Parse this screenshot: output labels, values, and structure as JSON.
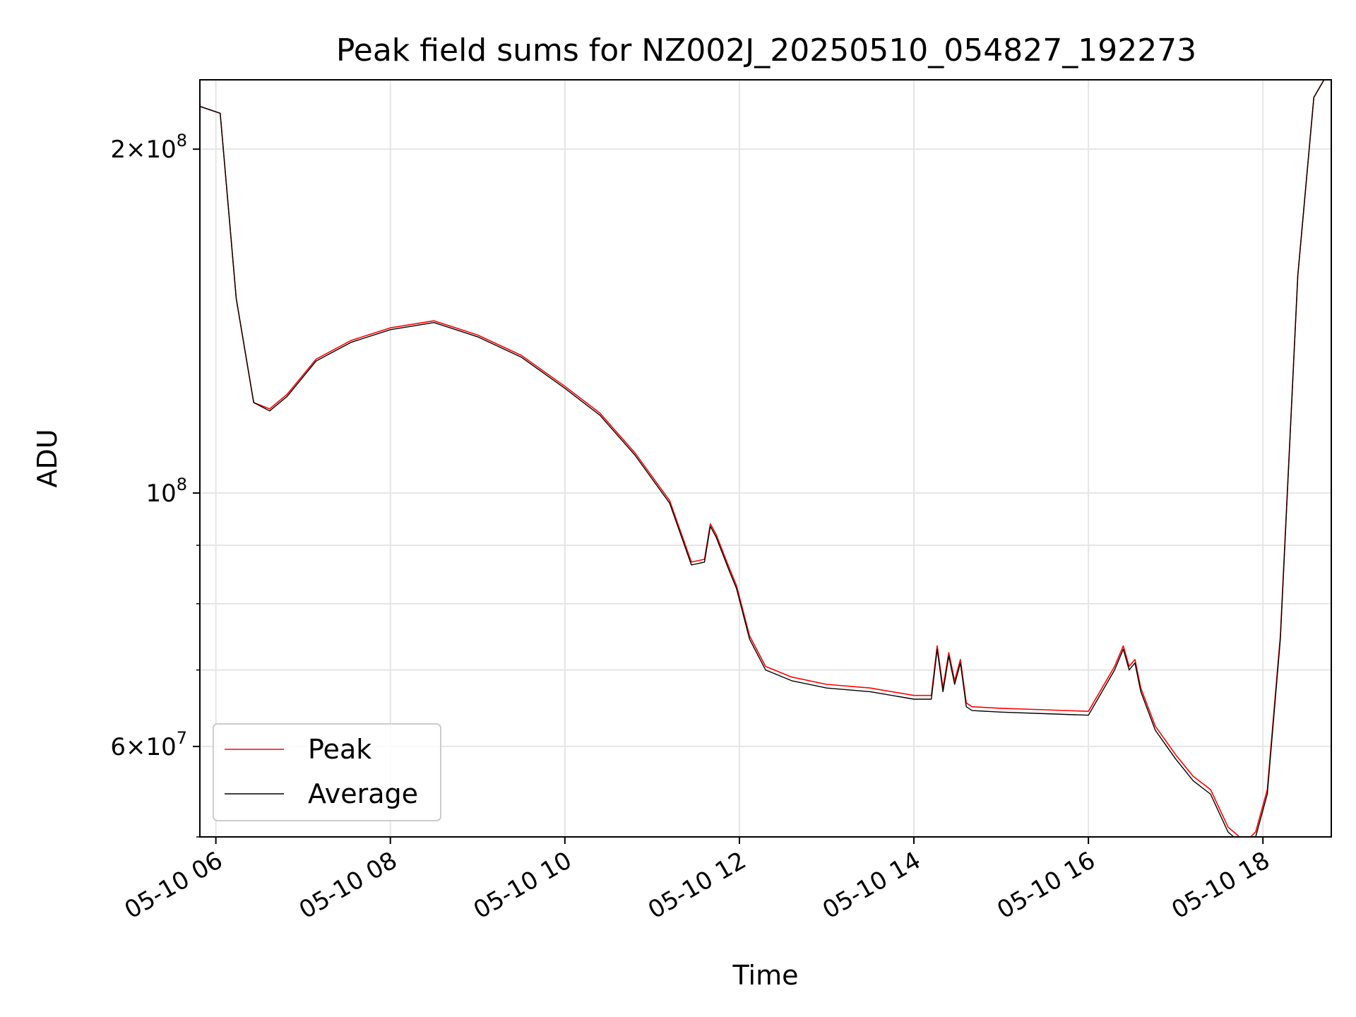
{
  "chart_data": {
    "type": "line",
    "title": "Peak field sums for NZ002J_20250510_054827_192273",
    "xlabel": "Time",
    "ylabel": "ADU",
    "yscale": "log",
    "xlim": [
      "2025-05-10T05:49",
      "2025-05-10T18:47"
    ],
    "ylim": [
      50000000,
      230000000
    ],
    "x_ticks": [
      {
        "value": "2025-05-10T06:00",
        "label": "05-10 06"
      },
      {
        "value": "2025-05-10T08:00",
        "label": "05-10 08"
      },
      {
        "value": "2025-05-10T10:00",
        "label": "05-10 10"
      },
      {
        "value": "2025-05-10T12:00",
        "label": "05-10 12"
      },
      {
        "value": "2025-05-10T14:00",
        "label": "05-10 14"
      },
      {
        "value": "2025-05-10T16:00",
        "label": "05-10 16"
      },
      {
        "value": "2025-05-10T18:00",
        "label": "05-10 18"
      }
    ],
    "y_major_ticks": [
      {
        "value": 60000000,
        "mantissa": "6",
        "exponent": "7",
        "has_mantissa": true
      },
      {
        "value": 100000000,
        "mantissa": "",
        "exponent": "8",
        "has_mantissa": false
      },
      {
        "value": 200000000,
        "mantissa": "2",
        "exponent": "8",
        "has_mantissa": true
      }
    ],
    "y_minor_ticks": [
      50000000,
      70000000,
      80000000,
      90000000
    ],
    "grid": true,
    "legend_position": "lower-left",
    "series": [
      {
        "name": "Peak",
        "color": "#ff0000",
        "x": [
          "2025-05-10T05:49",
          "2025-05-10T06:03",
          "2025-05-10T06:14",
          "2025-05-10T06:26",
          "2025-05-10T06:37",
          "2025-05-10T06:49",
          "2025-05-10T07:09",
          "2025-05-10T07:33",
          "2025-05-10T08:00",
          "2025-05-10T08:30",
          "2025-05-10T09:00",
          "2025-05-10T09:30",
          "2025-05-10T10:00",
          "2025-05-10T10:24",
          "2025-05-10T10:48",
          "2025-05-10T11:12",
          "2025-05-10T11:27",
          "2025-05-10T11:36",
          "2025-05-10T11:40",
          "2025-05-10T11:44",
          "2025-05-10T11:53",
          "2025-05-10T11:58",
          "2025-05-10T12:07",
          "2025-05-10T12:18",
          "2025-05-10T12:36",
          "2025-05-10T13:00",
          "2025-05-10T13:30",
          "2025-05-10T14:00",
          "2025-05-10T14:12",
          "2025-05-10T14:16",
          "2025-05-10T14:20",
          "2025-05-10T14:24",
          "2025-05-10T14:28",
          "2025-05-10T14:32",
          "2025-05-10T14:36",
          "2025-05-10T14:40",
          "2025-05-10T15:00",
          "2025-05-10T15:30",
          "2025-05-10T16:00",
          "2025-05-10T16:18",
          "2025-05-10T16:24",
          "2025-05-10T16:28",
          "2025-05-10T16:32",
          "2025-05-10T16:36",
          "2025-05-10T16:46",
          "2025-05-10T17:00",
          "2025-05-10T17:12",
          "2025-05-10T17:24",
          "2025-05-10T17:36",
          "2025-05-10T17:48",
          "2025-05-10T17:55",
          "2025-05-10T18:03",
          "2025-05-10T18:12",
          "2025-05-10T18:24",
          "2025-05-10T18:35",
          "2025-05-10T18:42",
          "2025-05-10T18:47"
        ],
        "y": [
          218000000,
          215000000,
          148000000,
          120000000,
          118500000,
          122000000,
          131000000,
          136000000,
          139500000,
          141500000,
          137500000,
          132000000,
          124000000,
          117500000,
          108500000,
          98500000,
          87000000,
          87500000,
          94000000,
          92000000,
          86000000,
          83000000,
          75000000,
          70500000,
          69000000,
          68000000,
          67500000,
          66500000,
          66500000,
          73500000,
          67500000,
          72500000,
          68500000,
          71500000,
          65500000,
          65000000,
          64800000,
          64600000,
          64400000,
          70500000,
          73500000,
          70500000,
          71500000,
          67500000,
          62500000,
          59000000,
          56500000,
          55000000,
          51000000,
          49500000,
          50500000,
          55000000,
          75000000,
          155000000,
          222000000,
          230000000,
          230000000
        ]
      },
      {
        "name": "Average",
        "color": "#000000",
        "x": [
          "2025-05-10T05:49",
          "2025-05-10T06:03",
          "2025-05-10T06:14",
          "2025-05-10T06:26",
          "2025-05-10T06:37",
          "2025-05-10T06:49",
          "2025-05-10T07:09",
          "2025-05-10T07:33",
          "2025-05-10T08:00",
          "2025-05-10T08:30",
          "2025-05-10T09:00",
          "2025-05-10T09:30",
          "2025-05-10T10:00",
          "2025-05-10T10:24",
          "2025-05-10T10:48",
          "2025-05-10T11:12",
          "2025-05-10T11:27",
          "2025-05-10T11:36",
          "2025-05-10T11:40",
          "2025-05-10T11:44",
          "2025-05-10T11:53",
          "2025-05-10T11:58",
          "2025-05-10T12:07",
          "2025-05-10T12:18",
          "2025-05-10T12:36",
          "2025-05-10T13:00",
          "2025-05-10T13:30",
          "2025-05-10T14:00",
          "2025-05-10T14:12",
          "2025-05-10T14:16",
          "2025-05-10T14:20",
          "2025-05-10T14:24",
          "2025-05-10T14:28",
          "2025-05-10T14:32",
          "2025-05-10T14:36",
          "2025-05-10T14:40",
          "2025-05-10T15:00",
          "2025-05-10T15:30",
          "2025-05-10T16:00",
          "2025-05-10T16:18",
          "2025-05-10T16:24",
          "2025-05-10T16:28",
          "2025-05-10T16:32",
          "2025-05-10T16:36",
          "2025-05-10T16:46",
          "2025-05-10T17:00",
          "2025-05-10T17:12",
          "2025-05-10T17:24",
          "2025-05-10T17:36",
          "2025-05-10T17:48",
          "2025-05-10T17:55",
          "2025-05-10T18:03",
          "2025-05-10T18:12",
          "2025-05-10T18:24",
          "2025-05-10T18:35",
          "2025-05-10T18:42",
          "2025-05-10T18:47"
        ],
        "y": [
          218000000,
          215000000,
          148000000,
          120000000,
          118000000,
          121500000,
          130500000,
          135500000,
          139000000,
          141000000,
          137000000,
          131500000,
          123500000,
          117000000,
          108000000,
          98000000,
          86500000,
          87000000,
          93500000,
          91500000,
          85500000,
          82500000,
          74500000,
          70000000,
          68500000,
          67500000,
          67000000,
          66000000,
          66000000,
          73000000,
          67000000,
          72000000,
          68000000,
          71000000,
          65000000,
          64500000,
          64300000,
          64100000,
          63900000,
          70000000,
          73000000,
          70000000,
          71000000,
          67000000,
          62000000,
          58500000,
          56000000,
          54500000,
          50500000,
          49000000,
          50000000,
          54500000,
          74500000,
          155000000,
          222000000,
          230000000,
          230000000
        ]
      }
    ]
  }
}
